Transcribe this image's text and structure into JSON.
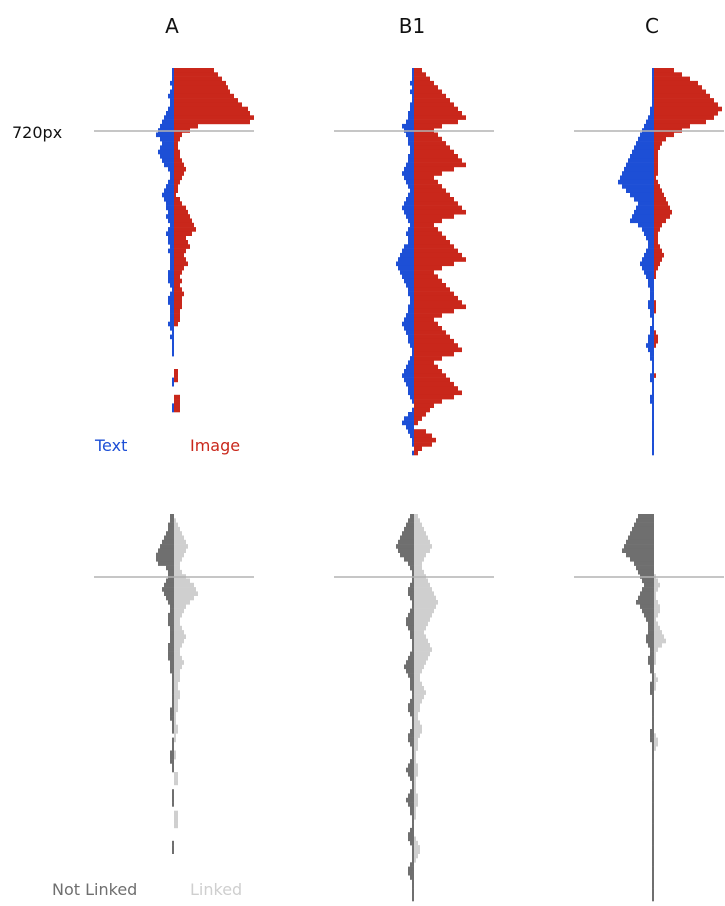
{
  "chart_data": [
    {
      "type": "bar",
      "orientation": "horizontal-diverging",
      "panel": "top",
      "columns": [
        "A",
        "B1",
        "C"
      ],
      "fold_label": "720px",
      "fold_row": 12,
      "left_series": {
        "name": "Text",
        "color": "#1d4fd6"
      },
      "right_series": {
        "name": "Image",
        "color": "#c9271b"
      },
      "data": {
        "A": {
          "left": [
            1,
            1,
            1,
            2,
            1,
            2,
            3,
            2,
            2,
            3,
            4,
            5,
            6,
            7,
            8,
            9,
            7,
            6,
            7,
            8,
            7,
            6,
            5,
            3,
            2,
            2,
            3,
            4,
            5,
            6,
            5,
            4,
            4,
            3,
            4,
            3,
            2,
            3,
            4,
            3,
            3,
            2,
            3,
            2,
            2,
            2,
            2,
            3,
            3,
            3,
            2,
            1,
            2,
            3,
            3,
            2,
            2,
            2,
            2,
            3,
            2,
            1,
            2,
            1,
            1,
            1,
            1,
            0,
            0,
            0,
            0,
            0,
            1,
            1,
            0,
            0,
            0,
            0,
            1,
            1
          ],
          "right": [
            20,
            22,
            24,
            26,
            27,
            28,
            30,
            32,
            34,
            37,
            38,
            40,
            38,
            12,
            8,
            4,
            3,
            2,
            2,
            3,
            3,
            4,
            5,
            6,
            5,
            4,
            3,
            2,
            2,
            1,
            3,
            4,
            6,
            7,
            8,
            9,
            10,
            11,
            9,
            6,
            7,
            8,
            6,
            5,
            6,
            7,
            5,
            4,
            3,
            4,
            3,
            4,
            5,
            4,
            4,
            4,
            3,
            3,
            3,
            2,
            0,
            0,
            0,
            0,
            0,
            0,
            0,
            0,
            0,
            0,
            2,
            2,
            2,
            0,
            0,
            0,
            3,
            3,
            3,
            3
          ]
        },
        "B1": {
          "left": [
            1,
            1,
            1,
            2,
            1,
            2,
            1,
            1,
            2,
            2,
            3,
            3,
            4,
            6,
            5,
            4,
            3,
            3,
            2,
            2,
            3,
            3,
            4,
            5,
            6,
            5,
            4,
            3,
            2,
            3,
            4,
            5,
            6,
            5,
            4,
            3,
            2,
            3,
            4,
            3,
            3,
            5,
            6,
            7,
            8,
            9,
            8,
            7,
            6,
            5,
            4,
            3,
            3,
            2,
            2,
            3,
            3,
            4,
            5,
            6,
            5,
            4,
            3,
            3,
            2,
            1,
            1,
            2,
            3,
            4,
            5,
            6,
            5,
            4,
            3,
            3,
            2,
            1,
            0,
            1,
            3,
            5,
            6,
            4,
            3,
            2,
            1,
            1,
            0,
            1
          ],
          "right": [
            4,
            6,
            8,
            10,
            12,
            14,
            16,
            18,
            20,
            22,
            24,
            26,
            22,
            14,
            10,
            12,
            14,
            16,
            18,
            20,
            22,
            24,
            26,
            20,
            14,
            10,
            12,
            14,
            16,
            18,
            20,
            22,
            24,
            26,
            20,
            14,
            10,
            12,
            14,
            16,
            18,
            20,
            22,
            24,
            26,
            20,
            14,
            10,
            12,
            14,
            16,
            18,
            20,
            22,
            24,
            26,
            20,
            14,
            10,
            12,
            14,
            16,
            18,
            20,
            22,
            24,
            20,
            14,
            10,
            12,
            14,
            16,
            18,
            20,
            22,
            24,
            20,
            14,
            10,
            8,
            6,
            4,
            2,
            0,
            6,
            9,
            11,
            9,
            4,
            2
          ]
        },
        "C": {
          "left": [
            1,
            1,
            1,
            1,
            1,
            1,
            1,
            1,
            1,
            2,
            2,
            3,
            4,
            5,
            6,
            7,
            8,
            9,
            10,
            11,
            12,
            13,
            14,
            15,
            16,
            17,
            18,
            16,
            14,
            12,
            10,
            8,
            9,
            10,
            11,
            12,
            8,
            6,
            5,
            4,
            3,
            3,
            4,
            5,
            6,
            7,
            6,
            5,
            4,
            3,
            3,
            2,
            2,
            2,
            3,
            3,
            2,
            2,
            1,
            1,
            2,
            2,
            3,
            3,
            4,
            3,
            2,
            2,
            1,
            1,
            1,
            2,
            2,
            1,
            1,
            1,
            2,
            2,
            1,
            1,
            1,
            1,
            1,
            1,
            1,
            1,
            1,
            1,
            1,
            1
          ],
          "right": [
            10,
            14,
            18,
            22,
            24,
            26,
            28,
            30,
            32,
            34,
            32,
            30,
            26,
            18,
            14,
            10,
            6,
            4,
            3,
            2,
            2,
            2,
            2,
            2,
            2,
            1,
            2,
            3,
            4,
            5,
            6,
            7,
            8,
            9,
            8,
            6,
            4,
            3,
            2,
            2,
            2,
            3,
            4,
            5,
            4,
            3,
            2,
            1,
            1,
            0,
            0,
            0,
            0,
            0,
            1,
            1,
            1,
            0,
            0,
            0,
            0,
            1,
            2,
            2,
            1,
            0,
            0,
            0,
            0,
            0,
            0,
            1,
            0,
            0,
            0,
            0,
            0,
            0,
            0,
            0,
            0,
            0,
            0,
            0,
            0,
            0,
            0,
            0,
            0,
            0
          ]
        }
      }
    },
    {
      "type": "bar",
      "orientation": "horizontal-diverging",
      "panel": "bottom",
      "columns": [
        "A",
        "B1",
        "C"
      ],
      "fold_row": 12,
      "left_series": {
        "name": "Not Linked",
        "color": "#6f6f6f"
      },
      "right_series": {
        "name": "Linked",
        "color": "#cfcfcf"
      },
      "data": {
        "A": {
          "left": [
            2,
            2,
            3,
            3,
            4,
            5,
            6,
            7,
            8,
            9,
            9,
            8,
            4,
            3,
            3,
            4,
            5,
            6,
            5,
            4,
            3,
            2,
            2,
            3,
            3,
            3,
            2,
            2,
            2,
            2,
            3,
            3,
            3,
            3,
            2,
            2,
            2,
            1,
            1,
            1,
            1,
            1,
            1,
            1,
            1,
            2,
            2,
            2,
            1,
            1,
            1,
            0,
            1,
            1,
            1,
            2,
            2,
            2,
            1,
            1,
            0,
            0,
            0,
            0,
            1,
            1,
            1,
            1,
            0,
            0,
            0,
            0,
            0,
            0,
            0,
            0,
            1,
            1,
            1,
            0
          ],
          "right": [
            0,
            1,
            2,
            3,
            4,
            5,
            6,
            7,
            6,
            5,
            4,
            3,
            3,
            4,
            6,
            8,
            10,
            11,
            12,
            10,
            8,
            6,
            5,
            4,
            3,
            3,
            4,
            5,
            6,
            5,
            4,
            3,
            3,
            4,
            5,
            4,
            3,
            3,
            3,
            2,
            2,
            3,
            3,
            2,
            2,
            2,
            1,
            1,
            1,
            2,
            2,
            1,
            1,
            0,
            0,
            1,
            1,
            0,
            0,
            0,
            2,
            2,
            2,
            0,
            0,
            0,
            0,
            0,
            0,
            2,
            2,
            2,
            2,
            0,
            0,
            0,
            0,
            0,
            0,
            0
          ]
        },
        "B1": {
          "left": [
            2,
            3,
            4,
            5,
            6,
            7,
            8,
            9,
            8,
            7,
            5,
            3,
            2,
            1,
            1,
            1,
            2,
            3,
            3,
            2,
            1,
            1,
            2,
            3,
            4,
            4,
            3,
            2,
            2,
            1,
            1,
            1,
            2,
            3,
            4,
            5,
            4,
            3,
            2,
            2,
            2,
            1,
            1,
            2,
            3,
            3,
            2,
            1,
            1,
            1,
            2,
            3,
            3,
            2,
            1,
            1,
            1,
            2,
            3,
            4,
            3,
            2,
            1,
            1,
            2,
            3,
            4,
            3,
            2,
            2,
            1,
            1,
            1,
            2,
            3,
            3,
            2,
            1,
            1,
            1,
            1,
            2,
            3,
            3,
            2,
            1,
            1,
            1,
            1,
            1
          ],
          "right": [
            2,
            3,
            4,
            5,
            6,
            7,
            8,
            9,
            8,
            6,
            5,
            4,
            4,
            5,
            6,
            7,
            8,
            9,
            10,
            11,
            12,
            11,
            10,
            9,
            8,
            7,
            6,
            5,
            6,
            7,
            8,
            9,
            8,
            7,
            6,
            5,
            4,
            3,
            3,
            4,
            5,
            6,
            5,
            4,
            3,
            3,
            2,
            2,
            3,
            4,
            4,
            3,
            2,
            2,
            2,
            1,
            1,
            1,
            2,
            2,
            2,
            1,
            1,
            1,
            1,
            2,
            2,
            2,
            1,
            1,
            1,
            0,
            0,
            0,
            0,
            1,
            2,
            3,
            3,
            2,
            1,
            0,
            0,
            0,
            0,
            0,
            0,
            0,
            0,
            0
          ]
        },
        "C": {
          "left": [
            8,
            9,
            10,
            11,
            12,
            13,
            14,
            15,
            16,
            14,
            12,
            10,
            9,
            8,
            7,
            6,
            5,
            6,
            7,
            8,
            9,
            7,
            6,
            5,
            4,
            3,
            3,
            3,
            4,
            4,
            3,
            2,
            2,
            3,
            3,
            2,
            2,
            1,
            1,
            2,
            2,
            2,
            1,
            1,
            1,
            1,
            1,
            1,
            1,
            1,
            2,
            2,
            2,
            1,
            1,
            1,
            1,
            1,
            1,
            1,
            1,
            1,
            1,
            1,
            1,
            1,
            1,
            1,
            1,
            1,
            1,
            1,
            1,
            1,
            1,
            1,
            1,
            1,
            1,
            1,
            1,
            1,
            1,
            1,
            1,
            1,
            1,
            1,
            1,
            1
          ],
          "right": [
            0,
            0,
            0,
            0,
            0,
            0,
            0,
            0,
            0,
            0,
            0,
            0,
            0,
            0,
            1,
            2,
            3,
            2,
            1,
            1,
            2,
            3,
            3,
            2,
            1,
            2,
            3,
            4,
            5,
            6,
            4,
            2,
            1,
            1,
            1,
            0,
            0,
            1,
            2,
            1,
            1,
            0,
            0,
            0,
            0,
            0,
            0,
            0,
            0,
            0,
            0,
            1,
            2,
            2,
            1,
            0,
            0,
            0,
            0,
            0,
            0,
            0,
            0,
            0,
            0,
            0,
            0,
            0,
            0,
            0,
            0,
            0,
            0,
            0,
            0,
            0,
            0,
            0,
            0,
            0,
            0,
            0,
            0,
            0,
            0,
            0,
            0,
            0,
            0,
            0
          ]
        }
      }
    }
  ]
}
